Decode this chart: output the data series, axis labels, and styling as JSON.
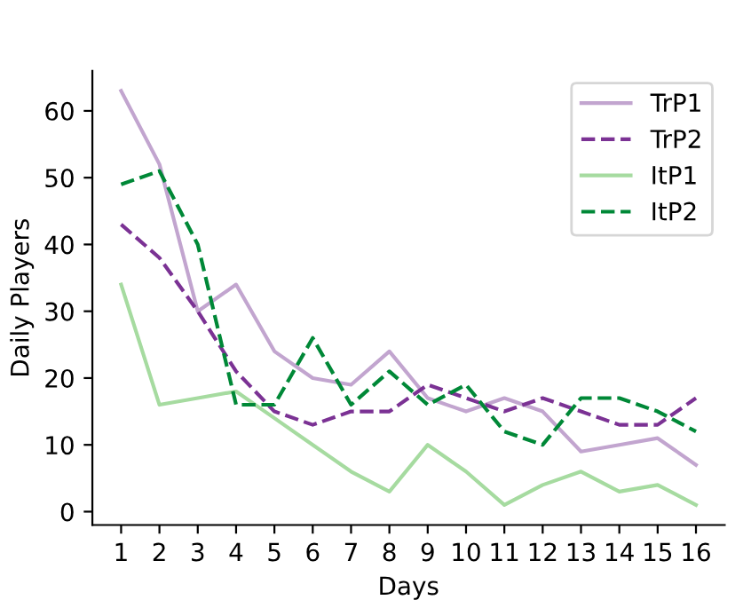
{
  "chart_data": {
    "type": "line",
    "xlabel": "Days",
    "ylabel": "Daily Players",
    "x": [
      1,
      2,
      3,
      4,
      5,
      6,
      7,
      8,
      9,
      10,
      11,
      12,
      13,
      14,
      15,
      16
    ],
    "xlim": [
      0.25,
      16.75
    ],
    "xticks": [
      1,
      2,
      3,
      4,
      5,
      6,
      7,
      8,
      9,
      10,
      11,
      12,
      13,
      14,
      15,
      16
    ],
    "ylim": [
      -2,
      66
    ],
    "yticks": [
      0,
      10,
      20,
      30,
      40,
      50,
      60
    ],
    "grid": false,
    "legend": "top right",
    "series": [
      {
        "name": "TrP1",
        "color": "#c2a5cf",
        "line_style": "solid",
        "values": [
          63,
          52,
          30,
          34,
          24,
          20,
          19,
          24,
          17,
          15,
          17,
          15,
          9,
          10,
          11,
          7
        ]
      },
      {
        "name": "TrP2",
        "color": "#7b3294",
        "line_style": "dashed",
        "values": [
          43,
          38,
          30,
          21,
          15,
          13,
          15,
          15,
          19,
          17,
          15,
          17,
          15,
          13,
          13,
          17
        ]
      },
      {
        "name": "ItP1",
        "color": "#a6dba0",
        "line_style": "solid",
        "values": [
          34,
          16,
          17,
          18,
          14,
          10,
          6,
          3,
          10,
          6,
          1,
          4,
          6,
          3,
          4,
          1
        ]
      },
      {
        "name": "ItP2",
        "color": "#008837",
        "line_style": "dashed",
        "values": [
          49,
          51,
          40,
          16,
          16,
          26,
          16,
          21,
          16,
          19,
          12,
          10,
          17,
          17,
          15,
          12
        ]
      }
    ]
  }
}
